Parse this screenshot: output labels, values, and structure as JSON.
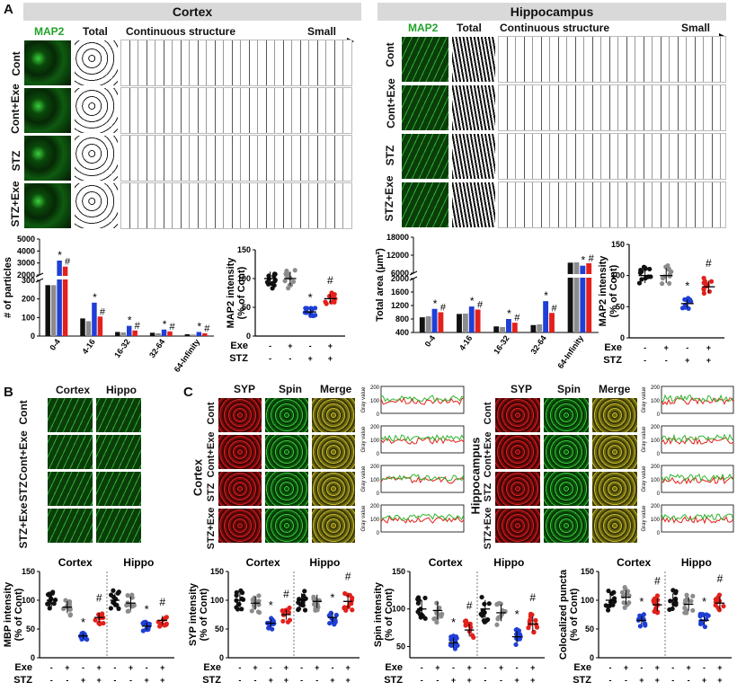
{
  "panel_labels": {
    "a": "A",
    "b": "B",
    "c": "C"
  },
  "panel_a": {
    "cortex_title": "Cortex",
    "hippocampus_title": "Hippocampus",
    "stain": "MAP2",
    "total": "Total",
    "continuous": "Continuous structure",
    "small": "Small",
    "groups": [
      "Cont",
      "Cont+Exe",
      "STZ",
      "STZ+Exe"
    ]
  },
  "panel_b": {
    "cols": [
      "Cortex",
      "Hippo"
    ],
    "groups": [
      "Cont",
      "Cont+Exe",
      "STZ",
      "STZ+Exe"
    ]
  },
  "panel_c": {
    "cols": [
      "SYP",
      "Spin",
      "Merge"
    ],
    "groups": [
      "Cont",
      "Cont+Exe",
      "STZ",
      "STZ+Exe"
    ],
    "region_left": "Cortex",
    "region_right": "Hippocampus",
    "gray_axis": "Gray value",
    "gray_ticks": [
      "200",
      "100",
      "0"
    ]
  },
  "conditions": {
    "exe_label": "Exe",
    "stz_label": "STZ",
    "exe": [
      "-",
      "+",
      "-",
      "+"
    ],
    "stz": [
      "-",
      "-",
      "+",
      "+"
    ]
  },
  "marks": {
    "star": "*",
    "hash": "#"
  },
  "colors": {
    "cont": "#111111",
    "exe": "#8c8c8c",
    "stz": "#1f3fd6",
    "stzexe": "#e3201b"
  },
  "chart_data": [
    {
      "id": "cortex_particles",
      "type": "bar",
      "ylabel": "# of particles",
      "categories": [
        "0-4",
        "4-16",
        "16-32",
        "32-64",
        "64-Infinity"
      ],
      "yticks_upper": [
        "5000",
        "4000",
        "3000",
        "2000"
      ],
      "yticks_lower": [
        "300",
        "200",
        "100",
        "0"
      ],
      "series": [
        {
          "name": "Cont",
          "values": [
            1150,
            95,
            22,
            18,
            10
          ]
        },
        {
          "name": "Cont+Exe",
          "values": [
            1150,
            80,
            20,
            15,
            8
          ]
        },
        {
          "name": "STZ",
          "values": [
            3200,
            180,
            55,
            35,
            22
          ]
        },
        {
          "name": "STZ+Exe",
          "values": [
            2700,
            105,
            30,
            25,
            15
          ]
        }
      ]
    },
    {
      "id": "cortex_map2",
      "type": "scatter",
      "ylabel": "MAP2 intensity (% of Cont)",
      "yticks": [
        "150",
        "100",
        "50",
        "0"
      ],
      "ylim": [
        0,
        150
      ],
      "groups": [
        "Cont",
        "Cont+Exe",
        "STZ",
        "STZ+Exe"
      ],
      "means": [
        100,
        100,
        42,
        65
      ]
    },
    {
      "id": "hippo_total_area",
      "type": "bar",
      "ylabel": "Total area (μm²)",
      "categories": [
        "0-4",
        "4-16",
        "16-32",
        "32-64",
        "64-Infinity"
      ],
      "yticks_upper": [
        "18000",
        "12000",
        "6000"
      ],
      "yticks_lower": [
        "2000",
        "1600",
        "1200",
        "800",
        "400"
      ],
      "series": [
        {
          "name": "Cont",
          "values": [
            850,
            950,
            580,
            620,
            9500
          ]
        },
        {
          "name": "Cont+Exe",
          "values": [
            880,
            960,
            560,
            640,
            9600
          ]
        },
        {
          "name": "STZ",
          "values": [
            1100,
            1170,
            800,
            1330,
            8500
          ]
        },
        {
          "name": "STZ+Exe",
          "values": [
            1000,
            1080,
            690,
            980,
            9300
          ]
        }
      ]
    },
    {
      "id": "hippo_map2",
      "type": "scatter",
      "ylabel": "MAP2 intensity (% of Cont)",
      "yticks": [
        "150",
        "100",
        "50",
        "0"
      ],
      "ylim": [
        0,
        150
      ],
      "groups": [
        "Cont",
        "Cont+Exe",
        "STZ",
        "STZ+Exe"
      ],
      "means": [
        100,
        100,
        55,
        82
      ]
    },
    {
      "id": "mbp",
      "type": "scatter",
      "ylabel": "MBP intensity (% of Cont)",
      "regions": [
        "Cortex",
        "Hippo"
      ],
      "yticks": [
        "150",
        "100",
        "50",
        "0"
      ],
      "ylim": [
        0,
        150
      ],
      "means": [
        100,
        88,
        38,
        70,
        100,
        95,
        55,
        65
      ]
    },
    {
      "id": "syp",
      "type": "scatter",
      "ylabel": "SYP intensity (% of Cont)",
      "regions": [
        "Cortex",
        "Hippo"
      ],
      "yticks": [
        "150",
        "100",
        "50",
        "0"
      ],
      "ylim": [
        0,
        150
      ],
      "means": [
        100,
        95,
        60,
        75,
        100,
        98,
        70,
        98
      ]
    },
    {
      "id": "spin",
      "type": "scatter",
      "ylabel": "Spin intensity (% of Cont)",
      "regions": [
        "Cortex",
        "Hippo"
      ],
      "yticks": [
        "150",
        "100",
        "50"
      ],
      "ylim": [
        35,
        150
      ],
      "means": [
        100,
        98,
        55,
        72,
        100,
        95,
        63,
        80
      ]
    },
    {
      "id": "coloc",
      "type": "scatter",
      "ylabel": "Colocalized puncta (% of Cont)",
      "regions": [
        "Cortex",
        "Hippo"
      ],
      "yticks": [
        "150",
        "100",
        "50",
        "0"
      ],
      "ylim": [
        0,
        150
      ],
      "means": [
        100,
        105,
        65,
        92,
        100,
        93,
        65,
        95
      ]
    }
  ]
}
